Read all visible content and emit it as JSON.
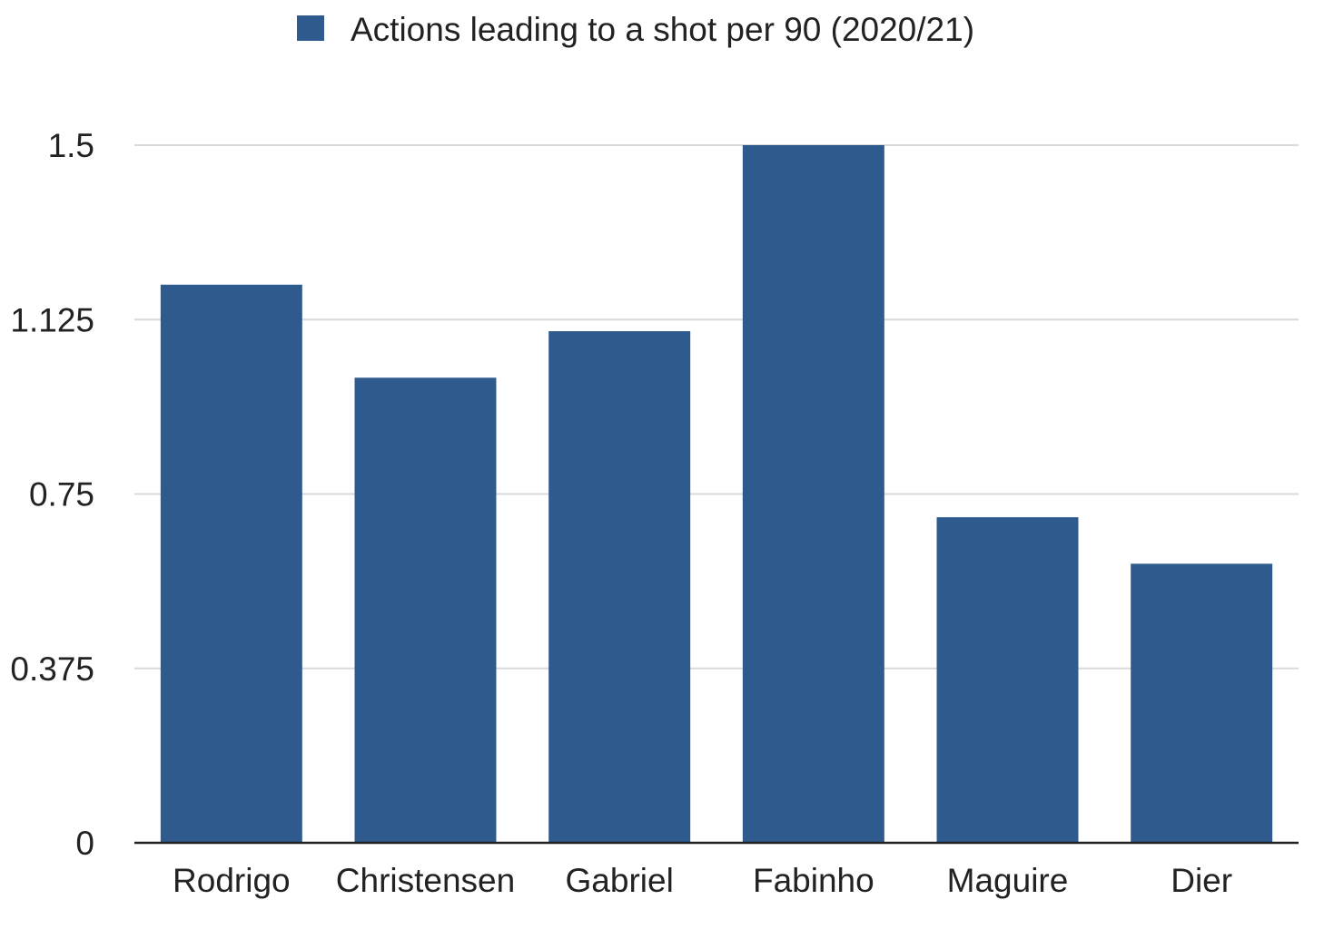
{
  "chart_data": {
    "type": "bar",
    "categories": [
      "Rodrigo",
      "Christensen",
      "Gabriel",
      "Fabinho",
      "Maguire",
      "Dier"
    ],
    "series": [
      {
        "name": "Actions leading to a shot per 90 (2020/21)",
        "values": [
          1.2,
          1.0,
          1.1,
          1.5,
          0.7,
          0.6
        ],
        "color": "#2e5a8e"
      }
    ],
    "ylim": [
      0,
      1.5
    ],
    "yticks": [
      0,
      0.375,
      0.75,
      1.125,
      1.5
    ],
    "ytick_labels": [
      "0",
      "0.375",
      "0.75",
      "1.125",
      "1.5"
    ],
    "grid": true,
    "legend_position": "top-center",
    "title": "",
    "xlabel": "",
    "ylabel": ""
  },
  "colors": {
    "bar": "#2e5a8e",
    "gridline": "#d9d9d9",
    "axis": "#222222",
    "text": "#222222"
  }
}
